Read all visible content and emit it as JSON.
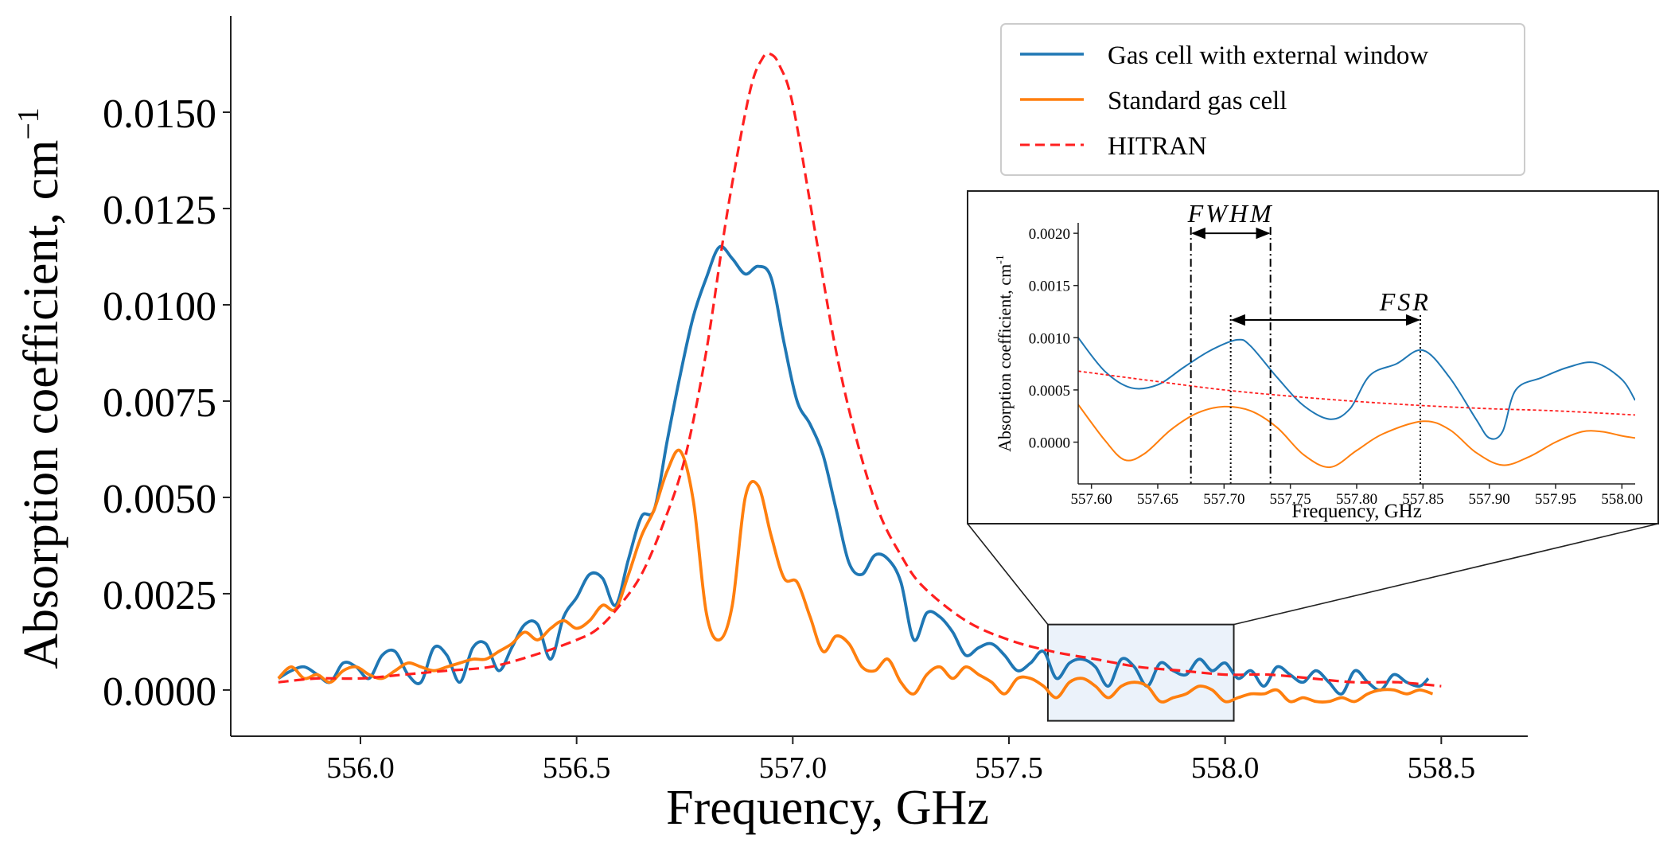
{
  "chart_data": [
    {
      "type": "line",
      "title": "",
      "xlabel": "Frequency, GHz",
      "ylabel": "Absorption coefficient, cm",
      "ylabel_sup": "−1",
      "xlim": [
        555.7,
        558.7
      ],
      "ylim": [
        -0.0012,
        0.0175
      ],
      "xticks": [
        556.0,
        556.5,
        557.0,
        557.5,
        558.0,
        558.5
      ],
      "xtick_labels": [
        "556.0",
        "556.5",
        "557.0",
        "557.5",
        "558.0",
        "558.5"
      ],
      "yticks": [
        0.0,
        0.0025,
        0.005,
        0.0075,
        0.01,
        0.0125,
        0.015
      ],
      "ytick_labels": [
        "0.0000",
        "0.0025",
        "0.0050",
        "0.0075",
        "0.0100",
        "0.0125",
        "0.0150"
      ],
      "grid": false,
      "legend_position": "top-right",
      "zoom_region": {
        "x": [
          557.59,
          558.02
        ],
        "y": [
          -0.0008,
          0.0017
        ]
      },
      "series": [
        {
          "name": "Gas cell with external window",
          "color": "#1f77b4",
          "style": "solid",
          "x": [
            555.81,
            555.84,
            555.87,
            555.9,
            555.93,
            555.96,
            555.99,
            556.02,
            556.05,
            556.08,
            556.11,
            556.14,
            556.17,
            556.2,
            556.23,
            556.26,
            556.29,
            556.32,
            556.35,
            556.38,
            556.41,
            556.44,
            556.47,
            556.5,
            556.53,
            556.56,
            556.59,
            556.62,
            556.65,
            556.68,
            556.71,
            556.74,
            556.77,
            556.8,
            556.83,
            556.86,
            556.89,
            556.92,
            556.95,
            556.98,
            557.01,
            557.04,
            557.07,
            557.1,
            557.13,
            557.16,
            557.19,
            557.22,
            557.25,
            557.28,
            557.31,
            557.34,
            557.37,
            557.4,
            557.43,
            557.46,
            557.49,
            557.52,
            557.55,
            557.58,
            557.61,
            557.64,
            557.67,
            557.7,
            557.73,
            557.76,
            557.79,
            557.82,
            557.85,
            557.88,
            557.91,
            557.94,
            557.97,
            558.0,
            558.03,
            558.06,
            558.09,
            558.12,
            558.15,
            558.18,
            558.21,
            558.24,
            558.27,
            558.3,
            558.33,
            558.36,
            558.39,
            558.42,
            558.45,
            558.47
          ],
          "y": [
            0.0003,
            0.0005,
            0.0006,
            0.0004,
            0.0002,
            0.0007,
            0.0006,
            0.0003,
            0.0009,
            0.001,
            0.0004,
            0.0002,
            0.0011,
            0.0009,
            0.0002,
            0.0011,
            0.0012,
            0.0005,
            0.0011,
            0.0017,
            0.0017,
            0.0008,
            0.0019,
            0.0024,
            0.003,
            0.0029,
            0.0022,
            0.0034,
            0.0045,
            0.0047,
            0.0065,
            0.0082,
            0.0097,
            0.0107,
            0.0115,
            0.0112,
            0.0108,
            0.011,
            0.0107,
            0.009,
            0.0075,
            0.0069,
            0.0061,
            0.0047,
            0.0033,
            0.003,
            0.0035,
            0.0034,
            0.0028,
            0.0013,
            0.002,
            0.0019,
            0.0015,
            0.0009,
            0.0011,
            0.0012,
            0.0009,
            0.0005,
            0.0007,
            0.001,
            0.0003,
            0.0007,
            0.0008,
            0.0006,
            0.0001,
            0.0008,
            0.0006,
            0.0001,
            0.0007,
            0.0005,
            0.0004,
            0.0008,
            0.0005,
            0.0007,
            0.0003,
            0.0005,
            0.0001,
            0.0006,
            0.0004,
            0.0002,
            0.0005,
            0.0002,
            -0.0001,
            0.0005,
            0.0002,
            0.0,
            0.0004,
            0.0002,
            0.0001,
            0.0003
          ]
        },
        {
          "name": "Standard gas cell",
          "color": "#ff7f0e",
          "style": "solid",
          "x": [
            555.81,
            555.84,
            555.87,
            555.9,
            555.93,
            555.96,
            555.99,
            556.02,
            556.05,
            556.08,
            556.11,
            556.14,
            556.17,
            556.2,
            556.23,
            556.26,
            556.29,
            556.32,
            556.35,
            556.38,
            556.41,
            556.44,
            556.47,
            556.5,
            556.53,
            556.56,
            556.59,
            556.62,
            556.65,
            556.68,
            556.71,
            556.74,
            556.77,
            556.8,
            556.83,
            556.86,
            556.89,
            556.92,
            556.95,
            556.98,
            557.01,
            557.04,
            557.07,
            557.1,
            557.13,
            557.16,
            557.19,
            557.22,
            557.25,
            557.28,
            557.31,
            557.34,
            557.37,
            557.4,
            557.43,
            557.46,
            557.49,
            557.52,
            557.55,
            557.58,
            557.61,
            557.64,
            557.67,
            557.7,
            557.73,
            557.76,
            557.79,
            557.82,
            557.85,
            557.88,
            557.91,
            557.94,
            557.97,
            558.0,
            558.03,
            558.06,
            558.09,
            558.12,
            558.15,
            558.18,
            558.21,
            558.24,
            558.27,
            558.3,
            558.33,
            558.36,
            558.39,
            558.42,
            558.45,
            558.48
          ],
          "y": [
            0.0003,
            0.0006,
            0.0003,
            0.0004,
            0.0002,
            0.0005,
            0.0006,
            0.0004,
            0.0003,
            0.0005,
            0.0007,
            0.0006,
            0.0005,
            0.0006,
            0.0007,
            0.0008,
            0.0008,
            0.001,
            0.0012,
            0.0015,
            0.0013,
            0.0016,
            0.0018,
            0.0016,
            0.0018,
            0.0022,
            0.0021,
            0.003,
            0.004,
            0.0047,
            0.0057,
            0.0062,
            0.0049,
            0.002,
            0.0013,
            0.0022,
            0.005,
            0.0053,
            0.004,
            0.0029,
            0.0028,
            0.0019,
            0.001,
            0.0014,
            0.0012,
            0.0006,
            0.0005,
            0.0008,
            0.0002,
            -0.0001,
            0.0004,
            0.0006,
            0.0003,
            0.0006,
            0.0004,
            0.0002,
            -0.0001,
            0.0003,
            0.0003,
            0.0001,
            -0.0002,
            0.0002,
            0.0003,
            0.0001,
            -0.0002,
            0.0001,
            0.0002,
            0.0001,
            -0.0003,
            -0.0002,
            -0.0001,
            0.0001,
            0.0,
            -0.0003,
            -0.0002,
            -0.0001,
            -0.0001,
            0.0,
            -0.0003,
            -0.0002,
            -0.0003,
            -0.0003,
            -0.0002,
            -0.0003,
            -0.0001,
            0.0,
            0.0,
            -0.0001,
            0.0,
            -0.0001
          ]
        },
        {
          "name": "HITRAN",
          "color": "#ff1f1f",
          "style": "dashed",
          "x": [
            555.81,
            555.9,
            556.0,
            556.1,
            556.2,
            556.3,
            556.4,
            556.5,
            556.55,
            556.6,
            556.65,
            556.7,
            556.75,
            556.8,
            556.85,
            556.9,
            556.93,
            556.95,
            556.97,
            557.0,
            557.05,
            557.1,
            557.15,
            557.2,
            557.25,
            557.3,
            557.4,
            557.5,
            557.6,
            557.7,
            557.8,
            557.9,
            558.0,
            558.1,
            558.2,
            558.3,
            558.4,
            558.5
          ],
          "y": [
            0.0002,
            0.0003,
            0.0003,
            0.0004,
            0.0005,
            0.0006,
            0.0009,
            0.0013,
            0.0016,
            0.0022,
            0.003,
            0.0043,
            0.006,
            0.0088,
            0.0125,
            0.0155,
            0.0164,
            0.0165,
            0.0162,
            0.0152,
            0.012,
            0.0088,
            0.0064,
            0.0046,
            0.0035,
            0.0027,
            0.0018,
            0.0013,
            0.001,
            0.0008,
            0.0006,
            0.0005,
            0.0004,
            0.0004,
            0.0003,
            0.0002,
            0.0002,
            0.0001
          ]
        }
      ],
      "legend": [
        {
          "label": "Gas cell with external window",
          "color": "#1f77b4",
          "style": "solid"
        },
        {
          "label": "Standard gas cell",
          "color": "#ff7f0e",
          "style": "solid"
        },
        {
          "label": "HITRAN",
          "color": "#ff1f1f",
          "style": "dashed"
        }
      ]
    },
    {
      "type": "line",
      "title": "",
      "xlabel": "Frequency, GHz",
      "ylabel": "Absorption coefficient, cm",
      "ylabel_sup": "-1",
      "xlim": [
        557.59,
        558.01
      ],
      "ylim": [
        -0.0004,
        0.0021
      ],
      "xticks": [
        557.6,
        557.65,
        557.7,
        557.75,
        557.8,
        557.85,
        557.9,
        557.95,
        558.0
      ],
      "xtick_labels": [
        "557.60",
        "557.65",
        "557.70",
        "557.75",
        "557.80",
        "557.85",
        "557.90",
        "557.95",
        "558.00"
      ],
      "yticks": [
        0.0,
        0.0005,
        0.001,
        0.0015,
        0.002
      ],
      "ytick_labels": [
        "0.0000",
        "0.0005",
        "0.0010",
        "0.0015",
        "0.0020"
      ],
      "grid": false,
      "annotations": [
        {
          "text": "FWHM",
          "x_start": 557.675,
          "x_end": 557.735
        },
        {
          "text": "FSR",
          "x_start": 557.705,
          "x_end": 557.848
        }
      ],
      "series": [
        {
          "name": "Gas cell with external window",
          "color": "#1f77b4",
          "style": "solid",
          "x": [
            557.59,
            557.61,
            557.63,
            557.65,
            557.67,
            557.69,
            557.71,
            557.72,
            557.74,
            557.76,
            557.78,
            557.795,
            557.81,
            557.83,
            557.85,
            557.87,
            557.89,
            557.9,
            557.91,
            557.92,
            557.94,
            557.96,
            557.98,
            558.0,
            558.01
          ],
          "y": [
            0.001,
            0.00068,
            0.00052,
            0.00055,
            0.00072,
            0.00088,
            0.00098,
            0.00092,
            0.00062,
            0.00035,
            0.00022,
            0.00032,
            0.00064,
            0.00075,
            0.00088,
            0.00062,
            0.00022,
            4e-05,
            0.0001,
            0.0005,
            0.00062,
            0.00072,
            0.00076,
            0.0006,
            0.0004
          ]
        },
        {
          "name": "Standard gas cell",
          "color": "#ff7f0e",
          "style": "solid",
          "x": [
            557.59,
            557.61,
            557.625,
            557.64,
            557.66,
            557.68,
            557.7,
            557.72,
            557.74,
            557.76,
            557.78,
            557.8,
            557.82,
            557.85,
            557.87,
            557.89,
            557.91,
            557.93,
            557.95,
            557.97,
            557.985,
            558.0,
            558.01
          ],
          "y": [
            0.00036,
            2e-05,
            -0.00017,
            -0.00011,
            0.00012,
            0.00028,
            0.00034,
            0.0003,
            0.00014,
            -0.00012,
            -0.00024,
            -8e-05,
            8e-05,
            0.0002,
            0.00012,
            -0.0001,
            -0.00022,
            -0.00014,
            0.0,
            0.0001,
            0.0001,
            6e-05,
            4e-05
          ]
        },
        {
          "name": "HITRAN",
          "color": "#ff1f1f",
          "style": "dashed",
          "x": [
            557.59,
            557.65,
            557.7,
            557.75,
            557.8,
            557.85,
            557.9,
            557.95,
            558.01
          ],
          "y": [
            0.00068,
            0.00058,
            0.0005,
            0.00044,
            0.00039,
            0.00035,
            0.00032,
            0.0003,
            0.00026
          ]
        }
      ]
    }
  ]
}
